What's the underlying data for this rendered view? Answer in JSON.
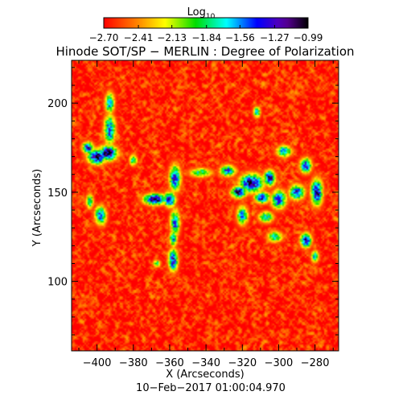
{
  "chart_data": {
    "type": "heatmap",
    "title": "Hinode SOT/SP − MERLIN : Degree of Polarization",
    "xlabel": "X (Arcseconds)",
    "ylabel": "Y (Arcseconds)",
    "date_label": "10−Feb−2017 01:00:04.970",
    "xlim": [
      -414,
      -267
    ],
    "ylim": [
      61,
      224
    ],
    "x_ticks": [
      -400,
      -380,
      -360,
      -340,
      -320,
      -300,
      -280
    ],
    "x_tick_labels": [
      "−400",
      "−380",
      "−360",
      "−340",
      "−320",
      "−300",
      "−280"
    ],
    "y_ticks": [
      100,
      150,
      200
    ],
    "y_tick_labels": [
      "100",
      "150",
      "200"
    ],
    "colorbar": {
      "title_base": "Log",
      "title_subscript": "10",
      "range": [
        -2.7,
        -0.99
      ],
      "tick_values": [
        -2.7,
        -2.41,
        -2.13,
        -1.84,
        -1.56,
        -1.27,
        -0.99
      ],
      "tick_labels": [
        "−2.70",
        "−2.41",
        "−2.13",
        "−1.84",
        "−1.56",
        "−1.27",
        "−0.99"
      ],
      "colormap": "rainbow"
    },
    "structures": [
      {
        "x": -400,
        "y": 170,
        "sx": 5,
        "sy": 4,
        "v": -1.05
      },
      {
        "x": -394,
        "y": 172,
        "sx": 5,
        "sy": 4,
        "v": -1.05
      },
      {
        "x": -393,
        "y": 185,
        "sx": 3,
        "sy": 8,
        "v": -1.4
      },
      {
        "x": -393,
        "y": 200,
        "sx": 2.5,
        "sy": 6,
        "v": -1.6
      },
      {
        "x": -405,
        "y": 175,
        "sx": 3,
        "sy": 3,
        "v": -1.25
      },
      {
        "x": -398,
        "y": 137,
        "sx": 3,
        "sy": 5,
        "v": -1.4
      },
      {
        "x": -404,
        "y": 145,
        "sx": 2,
        "sy": 4,
        "v": -1.65
      },
      {
        "x": -380,
        "y": 168,
        "sx": 2,
        "sy": 3,
        "v": -1.7
      },
      {
        "x": -368,
        "y": 146,
        "sx": 6,
        "sy": 3,
        "v": -1.05
      },
      {
        "x": -360,
        "y": 146,
        "sx": 3,
        "sy": 4,
        "v": -1.15
      },
      {
        "x": -357,
        "y": 158,
        "sx": 3,
        "sy": 7,
        "v": -1.3
      },
      {
        "x": -357,
        "y": 133,
        "sx": 2.5,
        "sy": 7,
        "v": -1.45
      },
      {
        "x": -358,
        "y": 112,
        "sx": 2.5,
        "sy": 6,
        "v": -1.25
      },
      {
        "x": -358,
        "y": 124,
        "sx": 2,
        "sy": 4,
        "v": -1.5
      },
      {
        "x": -343,
        "y": 161,
        "sx": 6,
        "sy": 2.5,
        "v": -1.75
      },
      {
        "x": -328,
        "y": 162,
        "sx": 4,
        "sy": 3,
        "v": -1.4
      },
      {
        "x": -315,
        "y": 155,
        "sx": 6,
        "sy": 5,
        "v": -1.05
      },
      {
        "x": -305,
        "y": 158,
        "sx": 3,
        "sy": 4,
        "v": -1.1
      },
      {
        "x": -322,
        "y": 150,
        "sx": 4,
        "sy": 3,
        "v": -1.15
      },
      {
        "x": -309,
        "y": 147,
        "sx": 4,
        "sy": 3,
        "v": -1.25
      },
      {
        "x": -320,
        "y": 137,
        "sx": 3,
        "sy": 5,
        "v": -1.55
      },
      {
        "x": -307,
        "y": 136,
        "sx": 4,
        "sy": 3,
        "v": -1.65
      },
      {
        "x": -300,
        "y": 146,
        "sx": 4,
        "sy": 5,
        "v": -1.35
      },
      {
        "x": -290,
        "y": 150,
        "sx": 4,
        "sy": 4,
        "v": -1.3
      },
      {
        "x": -279,
        "y": 150,
        "sx": 3,
        "sy": 7,
        "v": -1.1
      },
      {
        "x": -285,
        "y": 165,
        "sx": 3,
        "sy": 4,
        "v": -1.3
      },
      {
        "x": -297,
        "y": 173,
        "sx": 4,
        "sy": 3,
        "v": -1.5
      },
      {
        "x": -285,
        "y": 123,
        "sx": 3,
        "sy": 4,
        "v": -1.3
      },
      {
        "x": -280,
        "y": 114,
        "sx": 2,
        "sy": 3,
        "v": -1.55
      },
      {
        "x": -302,
        "y": 125,
        "sx": 4,
        "sy": 3,
        "v": -1.7
      },
      {
        "x": -312,
        "y": 195,
        "sx": 2,
        "sy": 3,
        "v": -1.7
      },
      {
        "x": -367,
        "y": 110,
        "sx": 2,
        "sy": 2,
        "v": -1.8
      }
    ]
  }
}
